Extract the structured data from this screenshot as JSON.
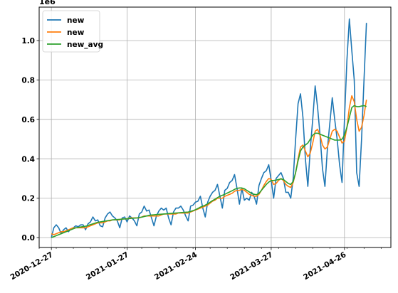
{
  "chart_data": {
    "type": "line",
    "title": "",
    "xlabel": "",
    "ylabel": "",
    "y_multiplier_label": "1e6",
    "grid": true,
    "legend_position": "top-left",
    "xlim": [
      "2020-12-22",
      "2021-05-15"
    ],
    "ylim": [
      -0.05,
      1.17
    ],
    "x_ticks": [
      "2020-12-27",
      "2021-01-27",
      "2021-02-24",
      "2021-03-27",
      "2021-04-26"
    ],
    "y_ticks": [
      "0.0",
      "0.2",
      "0.4",
      "0.6",
      "0.8",
      "1.0"
    ],
    "x_start": "2020-12-27",
    "series": [
      {
        "name": "new",
        "color": "#1f77b4",
        "values": [
          0.0,
          0.05,
          0.065,
          0.05,
          0.02,
          0.04,
          0.05,
          0.03,
          0.045,
          0.05,
          0.06,
          0.055,
          0.065,
          0.065,
          0.04,
          0.07,
          0.08,
          0.105,
          0.085,
          0.09,
          0.06,
          0.055,
          0.1,
          0.12,
          0.13,
          0.11,
          0.1,
          0.085,
          0.05,
          0.1,
          0.105,
          0.08,
          0.11,
          0.1,
          0.085,
          0.06,
          0.12,
          0.13,
          0.16,
          0.135,
          0.14,
          0.1,
          0.06,
          0.11,
          0.135,
          0.15,
          0.14,
          0.15,
          0.1,
          0.065,
          0.13,
          0.15,
          0.15,
          0.16,
          0.14,
          0.11,
          0.085,
          0.16,
          0.165,
          0.18,
          0.185,
          0.21,
          0.15,
          0.105,
          0.18,
          0.21,
          0.23,
          0.24,
          0.27,
          0.21,
          0.15,
          0.24,
          0.25,
          0.28,
          0.29,
          0.32,
          0.25,
          0.17,
          0.25,
          0.19,
          0.2,
          0.19,
          0.23,
          0.21,
          0.17,
          0.265,
          0.3,
          0.33,
          0.34,
          0.37,
          0.29,
          0.2,
          0.3,
          0.315,
          0.33,
          0.3,
          0.23,
          0.23,
          0.2,
          0.3,
          0.5,
          0.68,
          0.73,
          0.61,
          0.4,
          0.26,
          0.45,
          0.6,
          0.77,
          0.66,
          0.52,
          0.35,
          0.26,
          0.45,
          0.58,
          0.71,
          0.6,
          0.5,
          0.37,
          0.28,
          0.6,
          0.9,
          1.11,
          0.95,
          0.8,
          0.33,
          0.26,
          0.5,
          0.8,
          1.09
        ]
      },
      {
        "name": "new",
        "color": "#ff7f0e",
        "values": [
          0.02,
          0.015,
          0.02,
          0.025,
          0.03,
          0.03,
          0.035,
          0.04,
          0.045,
          0.05,
          0.05,
          0.05,
          0.05,
          0.05,
          0.05,
          0.055,
          0.06,
          0.065,
          0.07,
          0.075,
          0.075,
          0.075,
          0.08,
          0.085,
          0.085,
          0.09,
          0.09,
          0.09,
          0.09,
          0.095,
          0.095,
          0.095,
          0.1,
          0.1,
          0.1,
          0.1,
          0.1,
          0.105,
          0.11,
          0.11,
          0.11,
          0.11,
          0.11,
          0.11,
          0.11,
          0.115,
          0.12,
          0.12,
          0.12,
          0.12,
          0.12,
          0.12,
          0.125,
          0.125,
          0.125,
          0.125,
          0.125,
          0.13,
          0.135,
          0.14,
          0.145,
          0.15,
          0.155,
          0.16,
          0.165,
          0.175,
          0.185,
          0.19,
          0.2,
          0.2,
          0.2,
          0.21,
          0.215,
          0.22,
          0.225,
          0.235,
          0.24,
          0.24,
          0.245,
          0.24,
          0.23,
          0.22,
          0.215,
          0.21,
          0.21,
          0.22,
          0.24,
          0.265,
          0.285,
          0.3,
          0.295,
          0.27,
          0.275,
          0.29,
          0.3,
          0.29,
          0.27,
          0.26,
          0.255,
          0.28,
          0.33,
          0.4,
          0.46,
          0.47,
          0.44,
          0.41,
          0.43,
          0.48,
          0.54,
          0.55,
          0.52,
          0.47,
          0.45,
          0.46,
          0.5,
          0.54,
          0.55,
          0.54,
          0.51,
          0.48,
          0.49,
          0.56,
          0.66,
          0.72,
          0.69,
          0.6,
          0.54,
          0.56,
          0.62,
          0.7
        ]
      },
      {
        "name": "new_avg",
        "color": "#2ca02c",
        "values": [
          0.0,
          0.005,
          0.01,
          0.015,
          0.02,
          0.025,
          0.03,
          0.035,
          0.04,
          0.045,
          0.05,
          0.052,
          0.054,
          0.056,
          0.058,
          0.062,
          0.066,
          0.07,
          0.074,
          0.078,
          0.08,
          0.082,
          0.084,
          0.086,
          0.088,
          0.09,
          0.091,
          0.092,
          0.093,
          0.094,
          0.095,
          0.096,
          0.097,
          0.098,
          0.099,
          0.1,
          0.102,
          0.104,
          0.107,
          0.11,
          0.113,
          0.115,
          0.116,
          0.117,
          0.118,
          0.119,
          0.12,
          0.121,
          0.122,
          0.123,
          0.124,
          0.125,
          0.126,
          0.127,
          0.128,
          0.129,
          0.13,
          0.133,
          0.137,
          0.142,
          0.148,
          0.155,
          0.16,
          0.165,
          0.172,
          0.18,
          0.188,
          0.195,
          0.203,
          0.21,
          0.215,
          0.22,
          0.226,
          0.232,
          0.238,
          0.245,
          0.25,
          0.252,
          0.252,
          0.248,
          0.24,
          0.232,
          0.225,
          0.22,
          0.218,
          0.225,
          0.24,
          0.255,
          0.27,
          0.282,
          0.29,
          0.29,
          0.292,
          0.295,
          0.298,
          0.295,
          0.285,
          0.275,
          0.27,
          0.285,
          0.33,
          0.39,
          0.44,
          0.46,
          0.47,
          0.48,
          0.5,
          0.52,
          0.53,
          0.53,
          0.525,
          0.52,
          0.515,
          0.51,
          0.505,
          0.5,
          0.495,
          0.495,
          0.495,
          0.5,
          0.52,
          0.56,
          0.61,
          0.66,
          0.67,
          0.665,
          0.665,
          0.668,
          0.67,
          0.665
        ]
      }
    ]
  }
}
